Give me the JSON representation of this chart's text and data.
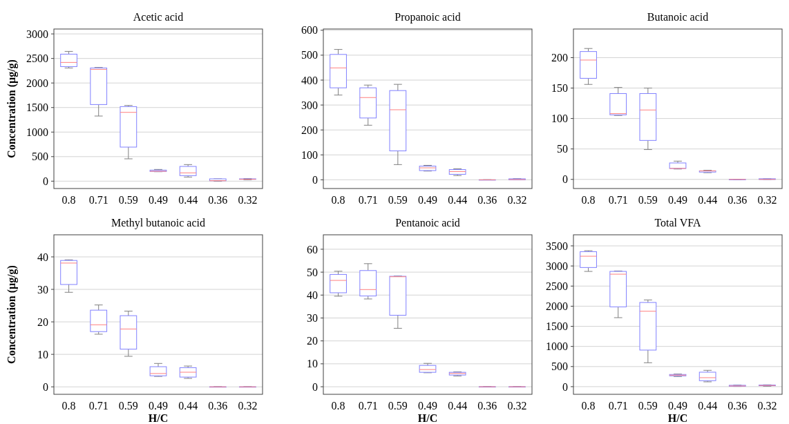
{
  "chart_data": [
    {
      "type": "box",
      "title": "Acetic acid",
      "ylabel": "Concentration (μg/g)",
      "categories": [
        "0.8",
        "0.71",
        "0.59",
        "0.49",
        "0.44",
        "0.36",
        "0.32"
      ],
      "ylim": [
        -150,
        3100
      ],
      "yticks": [
        0,
        500,
        1000,
        1500,
        2000,
        2500,
        3000
      ],
      "grid": "y",
      "series": [
        {
          "color": "#8080ff",
          "boxes": [
            {
              "low": 2306,
              "q1": 2334,
              "median": 2419,
              "q3": 2588,
              "high": 2644
            },
            {
              "low": 1327,
              "q1": 1561,
              "median": 2278,
              "q3": 2306,
              "high": 2316
            },
            {
              "low": 455,
              "q1": 694,
              "median": 1402,
              "q3": 1519,
              "high": 1542
            },
            {
              "low": 192,
              "q1": 197,
              "median": 202,
              "q3": 225,
              "high": 239
            },
            {
              "low": 84,
              "q1": 113,
              "median": 169,
              "q3": 300,
              "high": 338
            },
            {
              "low": 0,
              "q1": 9,
              "median": 9,
              "q3": 47,
              "high": 47
            },
            {
              "low": 28,
              "q1": 38,
              "median": 38,
              "q3": 47,
              "high": 52
            }
          ]
        }
      ]
    },
    {
      "type": "box",
      "title": "Propanoic acid",
      "categories": [
        "0.8",
        "0.71",
        "0.59",
        "0.49",
        "0.44",
        "0.36",
        "0.32"
      ],
      "ylim": [
        -35,
        605
      ],
      "yticks": [
        0,
        100,
        200,
        300,
        400,
        500,
        600
      ],
      "grid": "y",
      "series": [
        {
          "color": "#8080ff",
          "boxes": [
            {
              "low": 340,
              "q1": 369,
              "median": 449,
              "q3": 503,
              "high": 523
            },
            {
              "low": 219,
              "q1": 248,
              "median": 330,
              "q3": 369,
              "high": 380
            },
            {
              "low": 61,
              "q1": 116,
              "median": 281,
              "q3": 358,
              "high": 383
            },
            {
              "low": 35,
              "q1": 37,
              "median": 48,
              "q3": 55,
              "high": 58
            },
            {
              "low": 17,
              "q1": 22,
              "median": 33,
              "q3": 41,
              "high": 44
            },
            {
              "low": 0,
              "q1": 0,
              "median": 0,
              "q3": 0,
              "high": 0
            },
            {
              "low": 0,
              "q1": 0,
              "median": 1,
              "q3": 4,
              "high": 5
            }
          ]
        }
      ]
    },
    {
      "type": "box",
      "title": "Butanoic acid",
      "categories": [
        "0.8",
        "0.71",
        "0.59",
        "0.49",
        "0.44",
        "0.36",
        "0.32"
      ],
      "ylim": [
        -15,
        247
      ],
      "yticks": [
        0,
        50,
        100,
        150,
        200
      ],
      "grid": "y",
      "series": [
        {
          "color": "#8080ff",
          "boxes": [
            {
              "low": 156,
              "q1": 166,
              "median": 196,
              "q3": 210,
              "high": 215
            },
            {
              "low": 105,
              "q1": 106,
              "median": 108,
              "q3": 141,
              "high": 151
            },
            {
              "low": 49,
              "q1": 64,
              "median": 114,
              "q3": 141,
              "high": 150
            },
            {
              "low": 17,
              "q1": 18,
              "median": 18,
              "q3": 27,
              "high": 30
            },
            {
              "low": 11,
              "q1": 12,
              "median": 14,
              "q3": 14,
              "high": 15
            },
            {
              "low": 0,
              "q1": 0,
              "median": 0,
              "q3": 0,
              "high": 0
            },
            {
              "low": 0,
              "q1": 0,
              "median": 0,
              "q3": 1,
              "high": 1
            }
          ]
        }
      ]
    },
    {
      "type": "box",
      "title": "Methyl butanoic acid",
      "ylabel": "Concentration (μg/g)",
      "xlabel": "H/C",
      "categories": [
        "0.8",
        "0.71",
        "0.59",
        "0.49",
        "0.44",
        "0.36",
        "0.32"
      ],
      "ylim": [
        -2.3,
        46.8
      ],
      "yticks": [
        0,
        10,
        20,
        30,
        40
      ],
      "grid": "y",
      "series": [
        {
          "color": "#8080ff",
          "boxes": [
            {
              "low": 29.1,
              "q1": 31.5,
              "median": 38.1,
              "q3": 38.9,
              "high": 39.1
            },
            {
              "low": 16.2,
              "q1": 17,
              "median": 19.1,
              "q3": 23.6,
              "high": 25.2
            },
            {
              "low": 9.4,
              "q1": 11.6,
              "median": 17.8,
              "q3": 21.9,
              "high": 23.3
            },
            {
              "low": 3.2,
              "q1": 3.4,
              "median": 4.1,
              "q3": 6.2,
              "high": 7.2
            },
            {
              "low": 2.6,
              "q1": 3,
              "median": 4.5,
              "q3": 5.9,
              "high": 6.4
            },
            {
              "low": 0,
              "q1": 0,
              "median": 0,
              "q3": 0,
              "high": 0
            },
            {
              "low": 0,
              "q1": 0,
              "median": 0,
              "q3": 0,
              "high": 0
            }
          ]
        }
      ]
    },
    {
      "type": "box",
      "title": "Pentanoic acid",
      "xlabel": "H/C",
      "categories": [
        "0.8",
        "0.71",
        "0.59",
        "0.49",
        "0.44",
        "0.36",
        "0.32"
      ],
      "ylim": [
        -3.3,
        66.3
      ],
      "yticks": [
        0,
        10,
        20,
        30,
        40,
        50,
        60
      ],
      "grid": "y",
      "series": [
        {
          "color": "#8080ff",
          "boxes": [
            {
              "low": 39.5,
              "q1": 41,
              "median": 46.4,
              "q3": 49,
              "high": 50.4
            },
            {
              "low": 38.3,
              "q1": 39.6,
              "median": 42.4,
              "q3": 50.7,
              "high": 53.7
            },
            {
              "low": 25.5,
              "q1": 31.2,
              "median": 48,
              "q3": 48.2,
              "high": 48.3
            },
            {
              "low": 6.1,
              "q1": 6.3,
              "median": 7.5,
              "q3": 9.3,
              "high": 10.2
            },
            {
              "low": 4.7,
              "q1": 5.1,
              "median": 5.8,
              "q3": 6.3,
              "high": 6.5
            },
            {
              "low": 0,
              "q1": 0,
              "median": 0,
              "q3": 0,
              "high": 0
            },
            {
              "low": 0,
              "q1": 0,
              "median": 0,
              "q3": 0,
              "high": 0
            }
          ]
        }
      ]
    },
    {
      "type": "box",
      "title": "Total VFA",
      "xlabel": "H/C",
      "categories": [
        "0.8",
        "0.71",
        "0.59",
        "0.49",
        "0.44",
        "0.36",
        "0.32"
      ],
      "ylim": [
        -190,
        3775
      ],
      "yticks": [
        0,
        500,
        1000,
        1500,
        2000,
        2500,
        3000,
        3500
      ],
      "grid": "y",
      "series": [
        {
          "color": "#8080ff",
          "boxes": [
            {
              "low": 2865,
              "q1": 2962,
              "median": 3242,
              "q3": 3356,
              "high": 3379
            },
            {
              "low": 1715,
              "q1": 1984,
              "median": 2796,
              "q3": 2865,
              "high": 2876
            },
            {
              "low": 595,
              "q1": 909,
              "median": 1875,
              "q3": 2093,
              "high": 2156
            },
            {
              "low": 252,
              "q1": 269,
              "median": 286,
              "q3": 303,
              "high": 314
            },
            {
              "low": 120,
              "q1": 149,
              "median": 223,
              "q3": 360,
              "high": 406
            },
            {
              "low": 6,
              "q1": 11,
              "median": 17,
              "q3": 34,
              "high": 40
            },
            {
              "low": 11,
              "q1": 23,
              "median": 29,
              "q3": 40,
              "high": 46
            }
          ]
        }
      ]
    }
  ]
}
